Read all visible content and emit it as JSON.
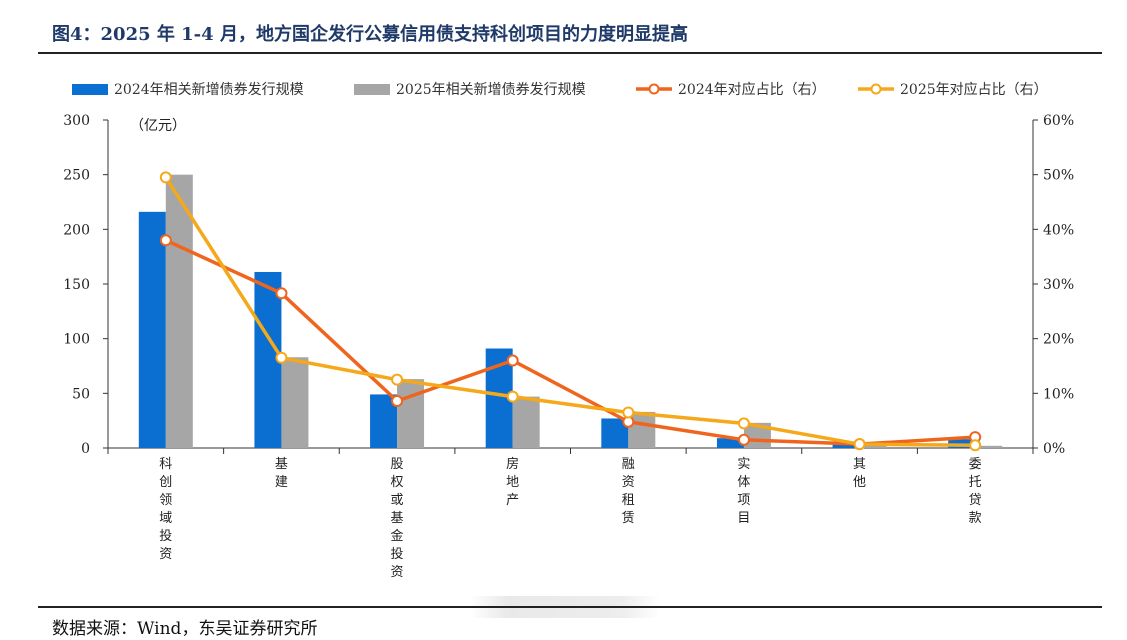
{
  "header": {
    "title": "图4：2025 年 1-4 月，地方国企发行公募信用债支持科创项目的力度明显提高"
  },
  "footer": {
    "source": "数据来源：Wind，东吴证券研究所"
  },
  "colors": {
    "bar2024": "#0a6fd1",
    "bar2025": "#a6a6a6",
    "line2024": "#f0651e",
    "line2025": "#f4a81a",
    "title": "#1f3a68"
  },
  "chart_data": {
    "type": "bar+line",
    "categories": [
      "科创领域投资",
      "基建",
      "股权或基金投资",
      "房地产",
      "融资租赁",
      "实体项目",
      "其他",
      "委托贷款"
    ],
    "unit_label": "（亿元）",
    "y_left": {
      "min": 0,
      "max": 300,
      "ticks": [
        0,
        50,
        100,
        150,
        200,
        250,
        300
      ]
    },
    "y_right": {
      "min": 0,
      "max": 60,
      "ticks": [
        "0%",
        "10%",
        "20%",
        "30%",
        "40%",
        "50%",
        "60%"
      ],
      "axis_label": ""
    },
    "series": [
      {
        "name": "2024年相关新增债券发行规模",
        "kind": "bar",
        "values": [
          216,
          161,
          49,
          91,
          27,
          9,
          3,
          8
        ]
      },
      {
        "name": "2025年相关新增债券发行规模",
        "kind": "bar",
        "values": [
          250,
          83,
          63,
          47,
          33,
          23,
          4,
          2
        ]
      },
      {
        "name": "2024年对应占比（右）",
        "kind": "line",
        "values": [
          38,
          28.3,
          8.6,
          16,
          4.8,
          1.5,
          0.7,
          2
        ]
      },
      {
        "name": "2025年对应占比（右）",
        "kind": "line",
        "values": [
          49.5,
          16.5,
          12.5,
          9.4,
          6.5,
          4.5,
          0.7,
          0.5
        ]
      }
    ],
    "legend_position": "top",
    "grid": false
  }
}
